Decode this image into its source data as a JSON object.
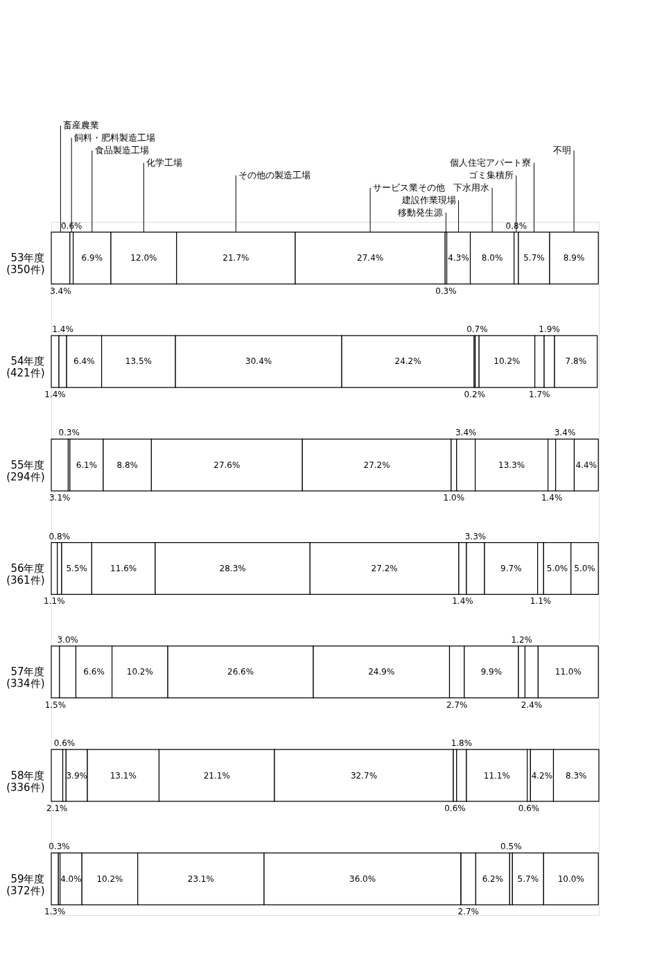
{
  "chart_data": {
    "type": "bar",
    "orientation": "horizontal",
    "stacked": true,
    "categories": [
      "53年度\n(350件)",
      "54年度\n(421件)",
      "55年度\n(294件)",
      "56年度\n(361件)",
      "57年度\n(334件)",
      "58年度\n(336件)",
      "59年度\n(372件)"
    ],
    "series": [
      {
        "name": "畜産農業",
        "color": "#ffffff",
        "values": [
          3.4,
          1.4,
          3.1,
          1.1,
          1.5,
          2.1,
          1.3
        ],
        "value_labels": [
          "3.4%",
          "1.4%",
          "3.1%",
          "1.1%",
          "1.5%",
          "2.1%",
          "1.3%"
        ]
      },
      {
        "name": "飼料・肥料製造工場",
        "color": "#ffffff",
        "values": [
          0.6,
          1.4,
          0.3,
          0.8,
          3.0,
          0.6,
          0.3
        ],
        "value_labels": [
          "0.6%",
          "1.4%",
          "0.3%",
          "0.8%",
          "3.0%",
          "0.6%",
          "0.3%"
        ]
      },
      {
        "name": "食品製造工場",
        "color": "#ffffff",
        "values": [
          6.9,
          6.4,
          6.1,
          5.5,
          6.6,
          3.9,
          4.0
        ],
        "value_labels": [
          "6.9%",
          "6.4%",
          "6.1%",
          "5.5%",
          "6.6%",
          "3.9%",
          "4.0%"
        ]
      },
      {
        "name": "化学工場",
        "color": "#ffffff",
        "values": [
          12.0,
          13.5,
          8.8,
          11.6,
          10.2,
          13.1,
          10.2
        ],
        "value_labels": [
          "12.0%",
          "13.5%",
          "8.8%",
          "11.6%",
          "10.2%",
          "13.1%",
          "10.2%"
        ]
      },
      {
        "name": "その他の製造工場",
        "color": "#ffffff",
        "values": [
          21.7,
          30.4,
          27.6,
          28.3,
          26.6,
          21.1,
          23.1
        ],
        "value_labels": [
          "21.7%",
          "30.4%",
          "27.6%",
          "28.3%",
          "26.6%",
          "21.1%",
          "23.1%"
        ]
      },
      {
        "name": "サービス業その他",
        "color": "#ffffff",
        "values": [
          27.4,
          24.2,
          27.2,
          27.2,
          24.9,
          32.7,
          36.0
        ],
        "value_labels": [
          "27.4%",
          "24.2%",
          "27.2%",
          "27.2%",
          "24.9%",
          "32.7%",
          "36.0%"
        ]
      },
      {
        "name": "移動発生源",
        "color": "#ffffff",
        "values": [
          0.3,
          0.2,
          1.0,
          1.4,
          0,
          0.6,
          0
        ],
        "value_labels": [
          "0.3%",
          "0.2%",
          "1.0%",
          "1.4%",
          null,
          "0.6%",
          null
        ]
      },
      {
        "name": "建設作業現場",
        "color": "#ffffff",
        "values": [
          4.3,
          0.7,
          3.4,
          3.3,
          2.7,
          1.8,
          2.7
        ],
        "value_labels": [
          "4.3%",
          "0.7%",
          "3.4%",
          "3.3%",
          "2.7%",
          "1.8%",
          "2.7%"
        ]
      },
      {
        "name": "下水用水",
        "color": "#ffffff",
        "values": [
          8.0,
          10.2,
          13.3,
          9.7,
          9.9,
          11.1,
          6.2
        ],
        "value_labels": [
          "8.0%",
          "10.2%",
          "13.3%",
          "9.7%",
          "9.9%",
          "11.1%",
          "6.2%"
        ]
      },
      {
        "name": "ゴミ集積所",
        "color": "#ffffff",
        "values": [
          0.8,
          1.7,
          1.4,
          1.1,
          1.2,
          0.6,
          0.5
        ],
        "value_labels": [
          "0.8%",
          "1.7%",
          "1.4%",
          "1.1%",
          "1.2%",
          "0.6%",
          "0.5%"
        ]
      },
      {
        "name": "個人住宅アパート寮",
        "color": "#ffffff",
        "values": [
          5.7,
          1.9,
          3.4,
          5.0,
          2.4,
          4.2,
          5.7
        ],
        "value_labels": [
          "5.7%",
          "1.9%",
          "3.4%",
          "5.0%",
          "2.4%",
          "4.2%",
          "5.7%"
        ]
      },
      {
        "name": "不明",
        "color": "#ffffff",
        "values": [
          8.9,
          7.8,
          4.4,
          5.0,
          11.0,
          8.3,
          10.0
        ],
        "value_labels": [
          "8.9%",
          "7.8%",
          "4.4%",
          "5.0%",
          "11.0%",
          "8.3%",
          "10.0%"
        ]
      }
    ]
  }
}
